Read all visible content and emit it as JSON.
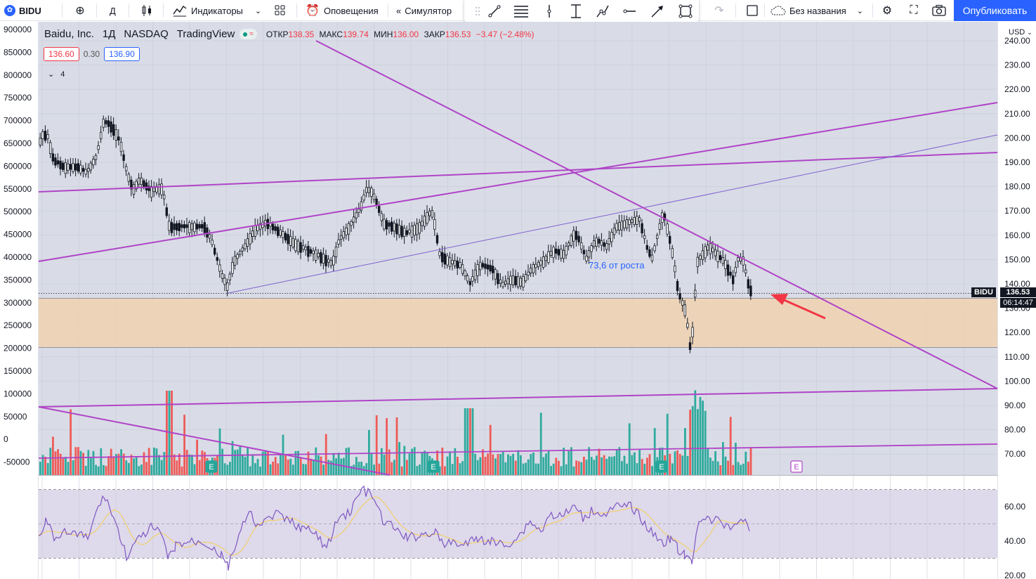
{
  "toolbar": {
    "symbol": "BIDU",
    "interval": "Д",
    "indicators_label": "Индикаторы",
    "alerts_label": "Оповещения",
    "simulator_label": "Симулятор",
    "layout_name": "Без названия",
    "publish_label": "Опубликовать"
  },
  "legend": {
    "name": "Baidu, Inc.",
    "interval": "1Д",
    "exchange": "NASDAQ",
    "source": "TradingView",
    "open_label": "ОТКР",
    "open": "138.35",
    "high_label": "МАКС",
    "high": "139.74",
    "low_label": "МИН",
    "low": "136.00",
    "close_label": "ЗАКР",
    "close": "136.53",
    "change": "−3.47 (−2.48%)",
    "sell": "136.60",
    "spread": "0.30",
    "buy": "136.90",
    "collapsed_count": "4"
  },
  "right_axis": {
    "currency": "USD",
    "ticks": [
      "240.00",
      "230.00",
      "220.00",
      "210.00",
      "200.00",
      "190.00",
      "180.00",
      "170.00",
      "160.00",
      "150.00",
      "140.00",
      "130.00",
      "120.00",
      "110.00",
      "100.00",
      "90.00",
      "80.00",
      "70.00"
    ],
    "symbol_tag": "BIDU",
    "last_price": "136.53",
    "countdown": "06:14:47"
  },
  "left_axis": {
    "ticks": [
      "900000",
      "850000",
      "800000",
      "750000",
      "700000",
      "650000",
      "600000",
      "550000",
      "500000",
      "450000",
      "400000",
      "350000",
      "300000",
      "250000",
      "200000",
      "150000",
      "100000",
      "50000",
      "0",
      "-50000"
    ]
  },
  "rsi_axis": {
    "ticks": [
      "60.00",
      "40.00",
      "20.00"
    ]
  },
  "annotation": "73,6 от роста",
  "earnings_marker": "E",
  "colors": {
    "up": "#26a69a",
    "down": "#ef5350",
    "trend": "#b044c8",
    "zone": "#f0d2b0",
    "accent": "#2962ff",
    "rsi": "#7e57c2",
    "rsi_ma": "#f2d06b"
  }
}
